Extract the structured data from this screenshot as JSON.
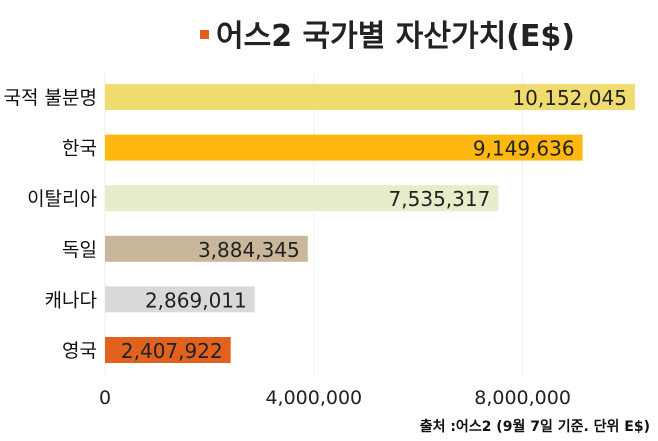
{
  "chart_data": {
    "type": "bar",
    "orientation": "horizontal",
    "title": "어스2 국가별 자산가치(E$)",
    "title_marker_color": "#E0621E",
    "categories": [
      "국적 불분명",
      "한국",
      "이탈리아",
      "독일",
      "캐나다",
      "영국"
    ],
    "values": [
      10152045,
      9149636,
      7535317,
      3884345,
      2869011,
      2407922
    ],
    "value_labels": [
      "10,152,045",
      "9,149,636",
      "7,535,317",
      "3,884,345",
      "2,869,011",
      "2,407,922"
    ],
    "colors": [
      "#F0DC6E",
      "#FFB80F",
      "#E6EDCB",
      "#C8B79B",
      "#D9D9D9",
      "#E0621E"
    ],
    "xlim": [
      0,
      10500000
    ],
    "xticks": [
      0,
      4000000,
      8000000
    ],
    "xtick_labels": [
      "0",
      "4,000,000",
      "8,000,000"
    ],
    "grid": "vertical, light",
    "legend": "none",
    "source_note": "출처 :어스2 (9월 7일 기준. 단위 E$)"
  }
}
